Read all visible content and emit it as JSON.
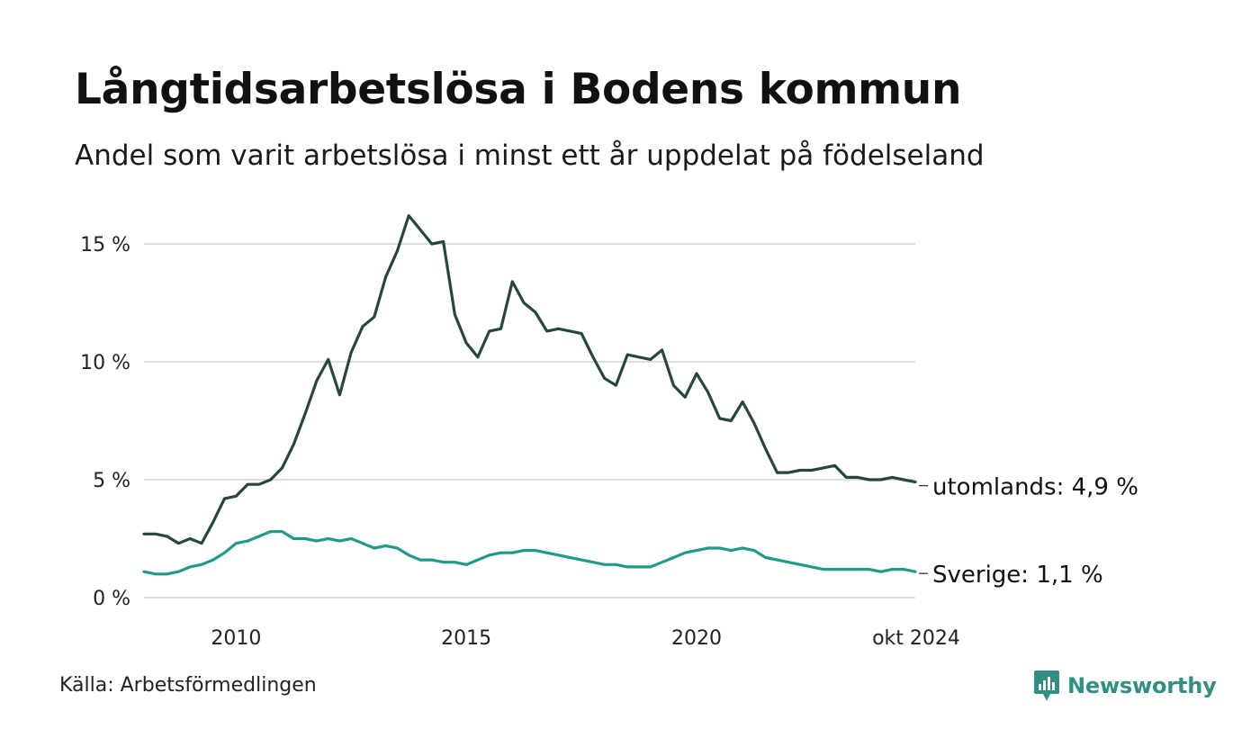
{
  "header": {
    "title": "Långtidsarbetslösa i Bodens kommun",
    "subtitle": "Andel som varit arbetslösa i minst ett år uppdelat på födelseland"
  },
  "footer": {
    "source": "Källa: Arbetsförmedlingen",
    "brand": "Newsworthy"
  },
  "colors": {
    "utomlands": "#25473f",
    "sverige": "#1f9b86",
    "grid": "#dddddd",
    "brand": "#2f8f83"
  },
  "chart_data": {
    "type": "line",
    "title": "Långtidsarbetslösa i Bodens kommun",
    "subtitle": "Andel som varit arbetslösa i minst ett år uppdelat på födelseland",
    "xlabel": "",
    "ylabel": "",
    "xlim": [
      2008.0,
      2024.75
    ],
    "ylim": [
      0,
      17
    ],
    "yticks": [
      0,
      5,
      10,
      15
    ],
    "ytick_labels": [
      "0 %",
      "5 %",
      "10 %",
      "15 %"
    ],
    "xticks": [
      2010,
      2015,
      2020,
      2024.75
    ],
    "xtick_labels": [
      "2010",
      "2015",
      "2020",
      "okt 2024"
    ],
    "grid": true,
    "series": [
      {
        "name": "utomlands",
        "end_label": "utomlands: 4,9 %",
        "x": [
          2008.0,
          2008.25,
          2008.5,
          2008.75,
          2009.0,
          2009.25,
          2009.5,
          2009.75,
          2010.0,
          2010.25,
          2010.5,
          2010.75,
          2011.0,
          2011.25,
          2011.5,
          2011.75,
          2012.0,
          2012.25,
          2012.5,
          2012.75,
          2013.0,
          2013.25,
          2013.5,
          2013.75,
          2014.0,
          2014.25,
          2014.5,
          2014.75,
          2015.0,
          2015.25,
          2015.5,
          2015.75,
          2016.0,
          2016.25,
          2016.5,
          2016.75,
          2017.0,
          2017.25,
          2017.5,
          2017.75,
          2018.0,
          2018.25,
          2018.5,
          2018.75,
          2019.0,
          2019.25,
          2019.5,
          2019.75,
          2020.0,
          2020.25,
          2020.5,
          2020.75,
          2021.0,
          2021.25,
          2021.5,
          2021.75,
          2022.0,
          2022.25,
          2022.5,
          2022.75,
          2023.0,
          2023.25,
          2023.5,
          2023.75,
          2024.0,
          2024.25,
          2024.5,
          2024.75
        ],
        "values": [
          2.7,
          2.7,
          2.6,
          2.3,
          2.5,
          2.3,
          3.2,
          4.2,
          4.3,
          4.8,
          4.8,
          5.0,
          5.5,
          6.5,
          7.8,
          9.2,
          10.1,
          8.6,
          10.4,
          11.5,
          11.9,
          13.6,
          14.7,
          16.2,
          15.6,
          15.0,
          15.1,
          12.0,
          10.8,
          10.2,
          11.3,
          11.4,
          13.4,
          12.5,
          12.1,
          11.3,
          11.4,
          11.3,
          11.2,
          10.2,
          9.3,
          9.0,
          10.3,
          10.2,
          10.1,
          10.5,
          9.0,
          8.5,
          9.5,
          8.7,
          7.6,
          7.5,
          8.3,
          7.4,
          6.3,
          5.3,
          5.3,
          5.4,
          5.4,
          5.5,
          5.6,
          5.1,
          5.1,
          5.0,
          5.0,
          5.1,
          5.0,
          4.9
        ]
      },
      {
        "name": "Sverige",
        "end_label": "Sverige: 1,1 %",
        "x": [
          2008.0,
          2008.25,
          2008.5,
          2008.75,
          2009.0,
          2009.25,
          2009.5,
          2009.75,
          2010.0,
          2010.25,
          2010.5,
          2010.75,
          2011.0,
          2011.25,
          2011.5,
          2011.75,
          2012.0,
          2012.25,
          2012.5,
          2012.75,
          2013.0,
          2013.25,
          2013.5,
          2013.75,
          2014.0,
          2014.25,
          2014.5,
          2014.75,
          2015.0,
          2015.25,
          2015.5,
          2015.75,
          2016.0,
          2016.25,
          2016.5,
          2016.75,
          2017.0,
          2017.25,
          2017.5,
          2017.75,
          2018.0,
          2018.25,
          2018.5,
          2018.75,
          2019.0,
          2019.25,
          2019.5,
          2019.75,
          2020.0,
          2020.25,
          2020.5,
          2020.75,
          2021.0,
          2021.25,
          2021.5,
          2021.75,
          2022.0,
          2022.25,
          2022.5,
          2022.75,
          2023.0,
          2023.25,
          2023.5,
          2023.75,
          2024.0,
          2024.25,
          2024.5,
          2024.75
        ],
        "values": [
          1.1,
          1.0,
          1.0,
          1.1,
          1.3,
          1.4,
          1.6,
          1.9,
          2.3,
          2.4,
          2.6,
          2.8,
          2.8,
          2.5,
          2.5,
          2.4,
          2.5,
          2.4,
          2.5,
          2.3,
          2.1,
          2.2,
          2.1,
          1.8,
          1.6,
          1.6,
          1.5,
          1.5,
          1.4,
          1.6,
          1.8,
          1.9,
          1.9,
          2.0,
          2.0,
          1.9,
          1.8,
          1.7,
          1.6,
          1.5,
          1.4,
          1.4,
          1.3,
          1.3,
          1.3,
          1.5,
          1.7,
          1.9,
          2.0,
          2.1,
          2.1,
          2.0,
          2.1,
          2.0,
          1.7,
          1.6,
          1.5,
          1.4,
          1.3,
          1.2,
          1.2,
          1.2,
          1.2,
          1.2,
          1.1,
          1.2,
          1.2,
          1.1
        ]
      }
    ]
  }
}
